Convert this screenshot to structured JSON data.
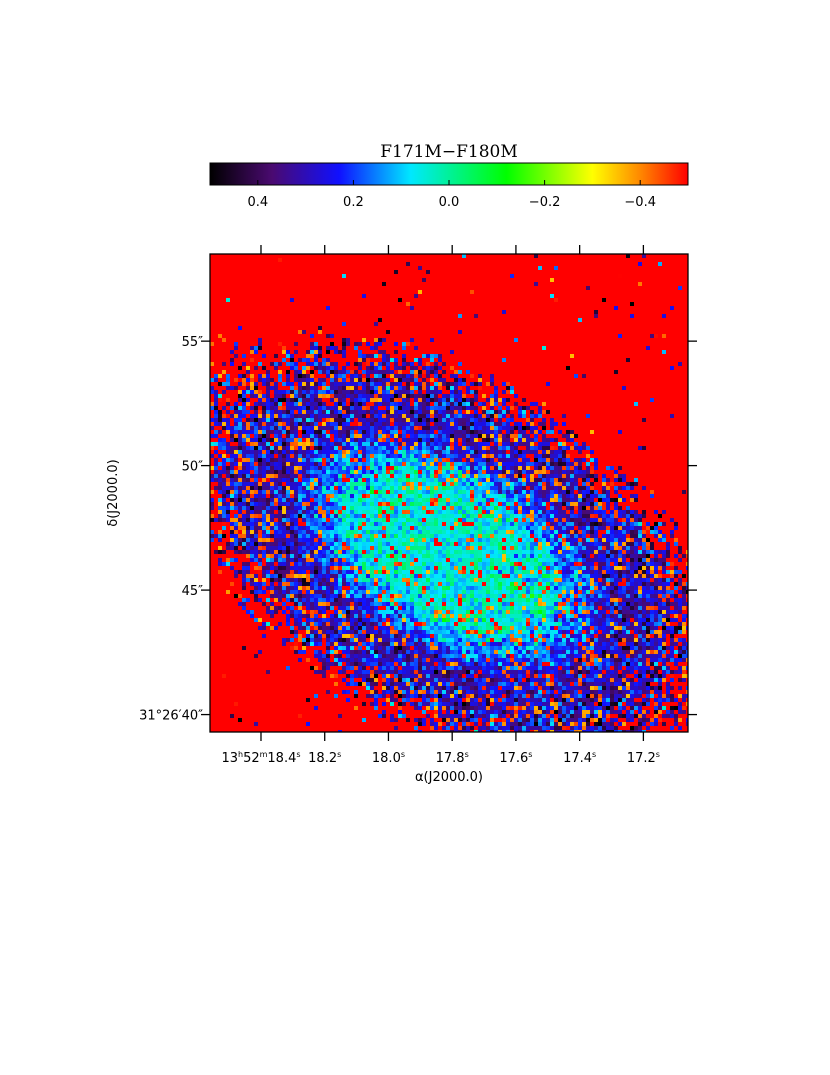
{
  "chart_data": {
    "type": "heatmap",
    "title": "F171M−F180M",
    "xlabel": "α(J2000.0)",
    "ylabel": "δ(J2000.0)",
    "colorbar": {
      "range": [
        0.5,
        -0.5
      ],
      "colormap": "black-purple-blue-cyan-green-yellow-orange-red",
      "ticks": [
        {
          "value": 0.4,
          "label": "0.4"
        },
        {
          "value": 0.2,
          "label": "0.2"
        },
        {
          "value": 0.0,
          "label": "0.0"
        },
        {
          "value": -0.2,
          "label": "−0.2"
        },
        {
          "value": -0.4,
          "label": "−0.4"
        }
      ]
    },
    "x_ticks": [
      {
        "value": 18.4,
        "label": "13h52m18.4s"
      },
      {
        "value": 18.2,
        "label": "18.2s"
      },
      {
        "value": 18.0,
        "label": "18.0s"
      },
      {
        "value": 17.8,
        "label": "17.8s"
      },
      {
        "value": 17.6,
        "label": "17.6s"
      },
      {
        "value": 17.4,
        "label": "17.4s"
      },
      {
        "value": 17.2,
        "label": "17.2s"
      }
    ],
    "y_ticks": [
      {
        "value": 55,
        "label": "55″"
      },
      {
        "value": 50,
        "label": "50″"
      },
      {
        "value": 45,
        "label": "45″"
      },
      {
        "value": 40,
        "label": "31°26′40″"
      }
    ],
    "xlim": [
      18.56,
      17.06
    ],
    "ylim": [
      39.3,
      58.5
    ],
    "background_value": -0.5,
    "map_center": {
      "ra_s": 17.81,
      "dec_s": 46.5
    },
    "core_value": 0.05,
    "ring_value": 0.3
  }
}
